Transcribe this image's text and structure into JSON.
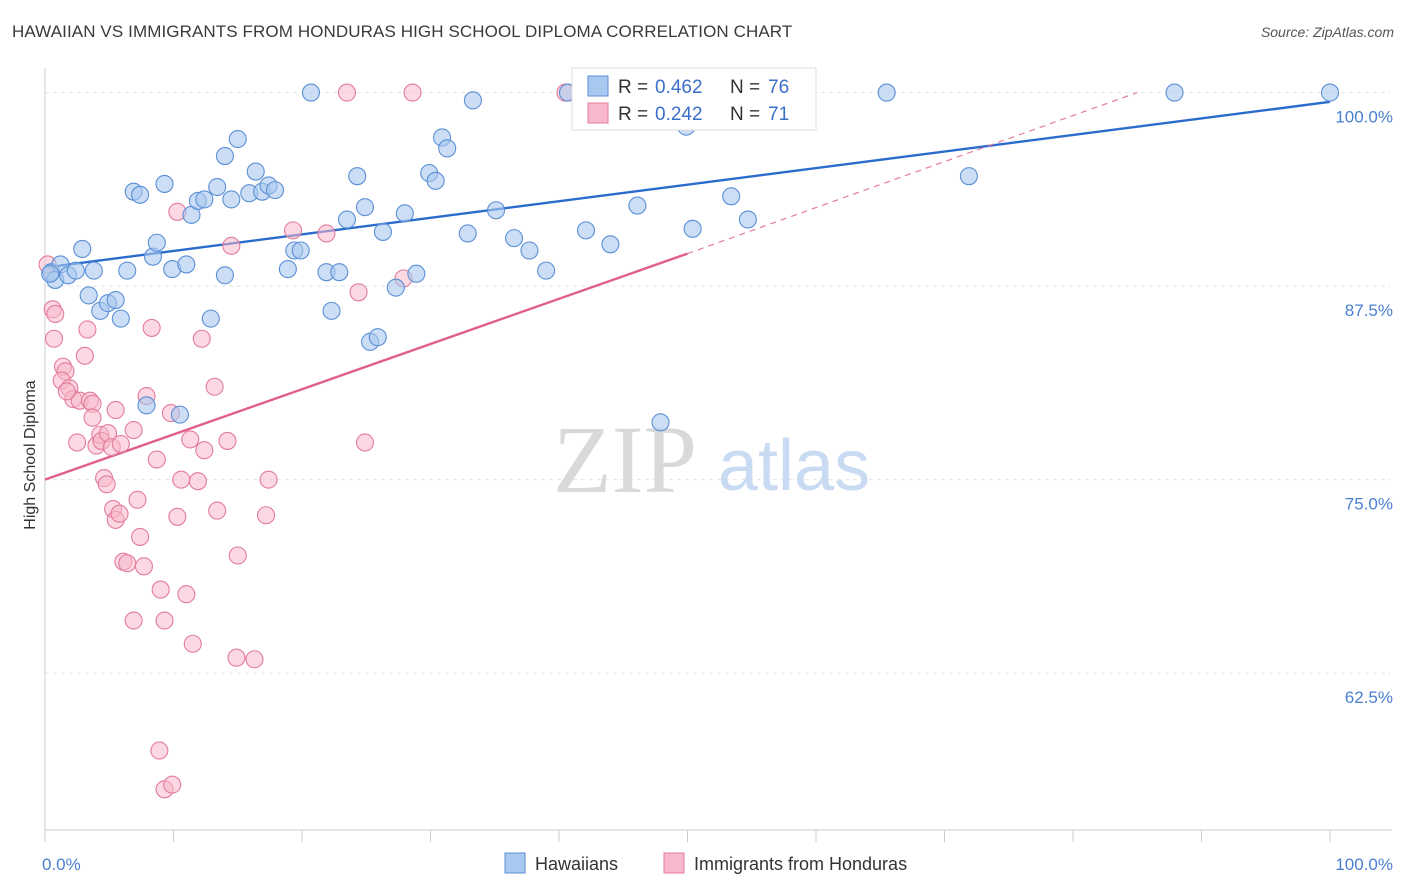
{
  "header": {
    "title": "HAWAIIAN VS IMMIGRANTS FROM HONDURAS HIGH SCHOOL DIPLOMA CORRELATION CHART",
    "source": "Source: ZipAtlas.com"
  },
  "watermark": {
    "zip": "ZIP",
    "atlas": "atlas"
  },
  "colors": {
    "blue_fill": "#a9c8ef",
    "blue_stroke": "#5b8fd6",
    "blue_line": "#2b6bcc",
    "pink_fill": "#f7b8cb",
    "pink_stroke": "#e37c9c",
    "pink_line": "#e0608a",
    "grid": "#e4e4e4",
    "tick_text": "#4a7fd0"
  },
  "chart_data": {
    "type": "scatter",
    "title": "HAWAIIAN VS IMMIGRANTS FROM HONDURAS HIGH SCHOOL DIPLOMA CORRELATION CHART",
    "xlabel": "",
    "ylabel": "High School Diploma",
    "xlim": [
      0,
      100
    ],
    "ylim": [
      52.5,
      101.2
    ],
    "x_tick_labels": [
      "0.0%",
      "100.0%"
    ],
    "y_ticks": [
      62.5,
      75.0,
      87.5,
      100.0
    ],
    "y_tick_labels": [
      "62.5%",
      "75.0%",
      "87.5%",
      "100.0%"
    ],
    "grid": true,
    "legend_position": "top-center",
    "series": [
      {
        "name": "Hawaiians",
        "R": "0.462",
        "N": "76",
        "trend": {
          "x": [
            0,
            100
          ],
          "y": [
            88.7,
            99.4
          ]
        },
        "points": [
          [
            0.5,
            88.4
          ],
          [
            1.2,
            88.9
          ],
          [
            0.8,
            87.9
          ],
          [
            1.8,
            88.2
          ],
          [
            2.4,
            88.5
          ],
          [
            2.9,
            89.9
          ],
          [
            3.4,
            86.9
          ],
          [
            3.8,
            88.5
          ],
          [
            4.3,
            85.9
          ],
          [
            4.9,
            86.4
          ],
          [
            5.5,
            86.6
          ],
          [
            5.9,
            85.4
          ],
          [
            6.4,
            88.5
          ],
          [
            6.9,
            93.6
          ],
          [
            7.4,
            93.4
          ],
          [
            7.9,
            79.8
          ],
          [
            8.4,
            89.4
          ],
          [
            8.7,
            90.3
          ],
          [
            9.3,
            94.1
          ],
          [
            9.9,
            88.6
          ],
          [
            10.5,
            79.2
          ],
          [
            11.0,
            88.9
          ],
          [
            11.4,
            92.1
          ],
          [
            11.9,
            93.0
          ],
          [
            12.4,
            93.1
          ],
          [
            12.9,
            85.4
          ],
          [
            13.4,
            93.9
          ],
          [
            14.0,
            88.2
          ],
          [
            14.5,
            93.1
          ],
          [
            15.0,
            97.0
          ],
          [
            14.0,
            95.9
          ],
          [
            15.9,
            93.5
          ],
          [
            16.4,
            94.9
          ],
          [
            16.9,
            93.6
          ],
          [
            17.4,
            94.0
          ],
          [
            17.9,
            93.7
          ],
          [
            18.9,
            88.6
          ],
          [
            19.4,
            89.8
          ],
          [
            19.9,
            89.8
          ],
          [
            20.7,
            100.0
          ],
          [
            21.9,
            88.4
          ],
          [
            22.3,
            85.9
          ],
          [
            22.9,
            88.4
          ],
          [
            23.5,
            91.8
          ],
          [
            24.3,
            94.6
          ],
          [
            24.9,
            92.6
          ],
          [
            25.3,
            83.9
          ],
          [
            25.9,
            84.2
          ],
          [
            26.3,
            91.0
          ],
          [
            27.3,
            87.4
          ],
          [
            28.0,
            92.2
          ],
          [
            28.9,
            88.3
          ],
          [
            29.9,
            94.8
          ],
          [
            30.4,
            94.3
          ],
          [
            30.9,
            97.1
          ],
          [
            31.3,
            96.4
          ],
          [
            32.9,
            90.9
          ],
          [
            33.3,
            99.5
          ],
          [
            35.1,
            92.4
          ],
          [
            36.5,
            90.6
          ],
          [
            37.7,
            89.8
          ],
          [
            39.0,
            88.5
          ],
          [
            40.7,
            100.0
          ],
          [
            42.1,
            91.1
          ],
          [
            44.0,
            90.2
          ],
          [
            46.1,
            92.7
          ],
          [
            47.9,
            78.7
          ],
          [
            49.9,
            97.8
          ],
          [
            50.4,
            91.2
          ],
          [
            53.4,
            93.3
          ],
          [
            54.7,
            91.8
          ],
          [
            65.5,
            100.0
          ],
          [
            71.9,
            94.6
          ],
          [
            87.9,
            100.0
          ],
          [
            100.0,
            100.0
          ],
          [
            0.4,
            88.3
          ]
        ]
      },
      {
        "name": "Immigrants from Honduras",
        "R": "0.242",
        "N": "71",
        "trend": {
          "x": [
            0,
            50
          ],
          "y": [
            75.0,
            89.6
          ]
        },
        "trend_extension": {
          "x": [
            50,
            85
          ],
          "y": [
            89.6,
            100.0
          ]
        },
        "points": [
          [
            0.2,
            88.9
          ],
          [
            0.6,
            86.0
          ],
          [
            0.8,
            85.7
          ],
          [
            0.7,
            84.1
          ],
          [
            1.4,
            82.3
          ],
          [
            1.6,
            82.0
          ],
          [
            1.3,
            81.4
          ],
          [
            1.9,
            80.9
          ],
          [
            2.2,
            80.2
          ],
          [
            2.7,
            80.1
          ],
          [
            3.1,
            83.0
          ],
          [
            3.3,
            84.7
          ],
          [
            3.5,
            80.1
          ],
          [
            3.7,
            79.9
          ],
          [
            4.0,
            77.2
          ],
          [
            4.3,
            77.9
          ],
          [
            4.4,
            77.5
          ],
          [
            4.9,
            78.0
          ],
          [
            5.2,
            77.1
          ],
          [
            5.5,
            79.5
          ],
          [
            5.9,
            77.3
          ],
          [
            2.5,
            77.4
          ],
          [
            4.6,
            75.1
          ],
          [
            4.8,
            74.7
          ],
          [
            5.3,
            73.1
          ],
          [
            5.5,
            72.4
          ],
          [
            5.8,
            72.8
          ],
          [
            6.1,
            69.7
          ],
          [
            6.4,
            69.6
          ],
          [
            6.9,
            78.2
          ],
          [
            7.2,
            73.7
          ],
          [
            7.4,
            71.3
          ],
          [
            7.7,
            69.4
          ],
          [
            7.9,
            80.4
          ],
          [
            8.3,
            84.8
          ],
          [
            8.7,
            76.3
          ],
          [
            9.0,
            67.9
          ],
          [
            9.3,
            65.9
          ],
          [
            9.8,
            79.3
          ],
          [
            10.3,
            72.6
          ],
          [
            10.6,
            75.0
          ],
          [
            11.0,
            67.6
          ],
          [
            11.3,
            77.6
          ],
          [
            11.5,
            64.4
          ],
          [
            11.9,
            74.9
          ],
          [
            12.2,
            84.1
          ],
          [
            12.4,
            76.9
          ],
          [
            13.2,
            81.0
          ],
          [
            13.4,
            73.0
          ],
          [
            14.2,
            77.5
          ],
          [
            14.5,
            90.1
          ],
          [
            15.0,
            70.1
          ],
          [
            14.9,
            63.5
          ],
          [
            16.3,
            63.4
          ],
          [
            17.2,
            72.7
          ],
          [
            17.4,
            75.0
          ],
          [
            19.3,
            91.1
          ],
          [
            21.9,
            90.9
          ],
          [
            23.5,
            100.0
          ],
          [
            24.4,
            87.1
          ],
          [
            24.9,
            77.4
          ],
          [
            27.9,
            88.0
          ],
          [
            28.6,
            100.0
          ],
          [
            8.9,
            57.5
          ],
          [
            9.3,
            55.0
          ],
          [
            9.9,
            55.3
          ],
          [
            10.3,
            92.3
          ],
          [
            6.9,
            65.9
          ],
          [
            1.7,
            80.7
          ],
          [
            3.7,
            79.0
          ],
          [
            40.5,
            100.0
          ]
        ]
      }
    ]
  },
  "bottom_legend": [
    "Hawaiians",
    "Immigrants from Honduras"
  ]
}
